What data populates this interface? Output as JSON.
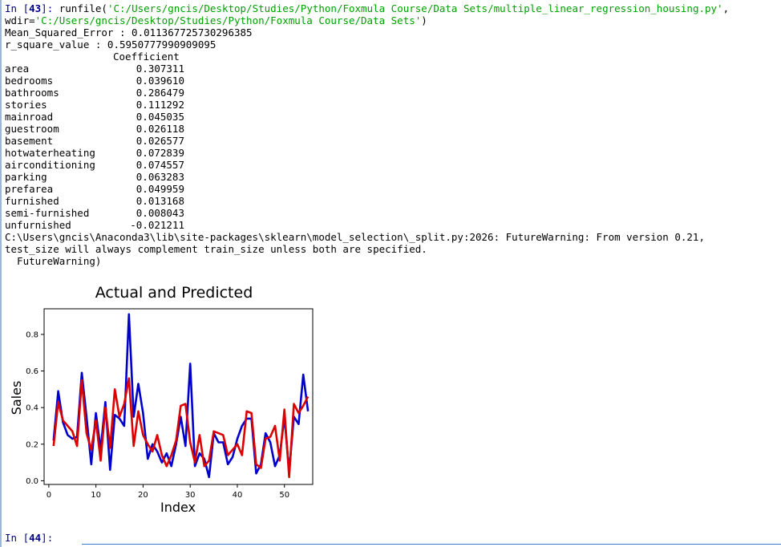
{
  "console": {
    "run": {
      "prompt_prefix": "In [",
      "prompt_number": "43",
      "prompt_suffix": "]: ",
      "cmd_start": "runfile(",
      "file_path": "'C:/Users/gncis/Desktop/Studies/Python/Foxmula Course/Data Sets/multiple_linear_regression_housing.py'",
      "cmd_mid": ",",
      "wdir_label": "wdir=",
      "wdir_path": "'C:/Users/gncis/Desktop/Studies/Python/Foxmula Course/Data Sets'",
      "cmd_end": ")"
    },
    "mse_line": "Mean_Squared_Error : 0.011367725730296385",
    "r2_line": "r_square_value : 0.5950777990909095",
    "coef_header": "Coefficient",
    "coefficients": [
      {
        "name": "area",
        "value": "0.307311"
      },
      {
        "name": "bedrooms",
        "value": "0.039610"
      },
      {
        "name": "bathrooms",
        "value": "0.286479"
      },
      {
        "name": "stories",
        "value": "0.111292"
      },
      {
        "name": "mainroad",
        "value": "0.045035"
      },
      {
        "name": "guestroom",
        "value": "0.026118"
      },
      {
        "name": "basement",
        "value": "0.026577"
      },
      {
        "name": "hotwaterheating",
        "value": "0.072839"
      },
      {
        "name": "airconditioning",
        "value": "0.074557"
      },
      {
        "name": "parking",
        "value": "0.063283"
      },
      {
        "name": "prefarea",
        "value": "0.049959"
      },
      {
        "name": "furnished",
        "value": "0.013168"
      },
      {
        "name": "semi-furnished",
        "value": "0.008043"
      },
      {
        "name": "unfurnished",
        "value": "-0.021211"
      }
    ],
    "warning_lines": [
      "C:\\Users\\gncis\\Anaconda3\\lib\\site-packages\\sklearn\\model_selection\\_split.py:2026: FutureWarning: From version 0.21,",
      "test_size will always complement train_size unless both are specified.",
      "  FutureWarning)"
    ],
    "next_prompt": {
      "prefix": "In [",
      "number": "44",
      "suffix": "]:"
    },
    "colors": {
      "prompt": "#000080",
      "string": "#00a000",
      "actual_series": "#0000cc",
      "predicted_series": "#dd0000"
    }
  },
  "chart_data": {
    "type": "line",
    "title": "Actual and Predicted",
    "xlabel": "Index",
    "ylabel": "Sales",
    "xlim": [
      -1,
      56
    ],
    "ylim": [
      -0.02,
      0.94
    ],
    "xticks": [
      0,
      10,
      20,
      30,
      40,
      50
    ],
    "yticks": [
      0.0,
      0.2,
      0.4,
      0.6,
      0.8
    ],
    "ytick_labels": [
      "0.0",
      "0.2",
      "0.4",
      "0.6",
      "0.8"
    ],
    "grid": false,
    "legend": "none",
    "x": [
      1,
      2,
      3,
      4,
      5,
      6,
      7,
      8,
      9,
      10,
      11,
      12,
      13,
      14,
      15,
      16,
      17,
      18,
      19,
      20,
      21,
      22,
      23,
      24,
      25,
      26,
      27,
      28,
      29,
      30,
      31,
      32,
      33,
      34,
      35,
      36,
      37,
      38,
      39,
      40,
      41,
      42,
      43,
      44,
      45,
      46,
      47,
      48,
      49,
      50,
      51,
      52,
      53,
      54,
      55
    ],
    "series": [
      {
        "color": "#0000cc",
        "values": [
          0.22,
          0.49,
          0.32,
          0.25,
          0.23,
          0.24,
          0.59,
          0.35,
          0.09,
          0.37,
          0.17,
          0.43,
          0.06,
          0.36,
          0.34,
          0.3,
          0.91,
          0.35,
          0.53,
          0.37,
          0.12,
          0.2,
          0.16,
          0.1,
          0.15,
          0.08,
          0.2,
          0.35,
          0.19,
          0.64,
          0.08,
          0.15,
          0.12,
          0.02,
          0.26,
          0.21,
          0.21,
          0.09,
          0.13,
          0.23,
          0.3,
          0.34,
          0.34,
          0.04,
          0.09,
          0.26,
          0.21,
          0.08,
          0.14,
          0.35,
          0.05,
          0.35,
          0.31,
          0.58,
          0.38
        ]
      },
      {
        "color": "#dd0000",
        "values": [
          0.19,
          0.43,
          0.33,
          0.3,
          0.27,
          0.19,
          0.55,
          0.26,
          0.17,
          0.33,
          0.11,
          0.4,
          0.18,
          0.5,
          0.35,
          0.42,
          0.56,
          0.19,
          0.38,
          0.25,
          0.2,
          0.16,
          0.25,
          0.14,
          0.08,
          0.14,
          0.22,
          0.41,
          0.42,
          0.21,
          0.1,
          0.25,
          0.08,
          0.11,
          0.27,
          0.26,
          0.25,
          0.14,
          0.17,
          0.2,
          0.14,
          0.38,
          0.37,
          0.09,
          0.07,
          0.23,
          0.24,
          0.3,
          0.11,
          0.39,
          0.02,
          0.42,
          0.37,
          0.41,
          0.46
        ]
      }
    ]
  }
}
